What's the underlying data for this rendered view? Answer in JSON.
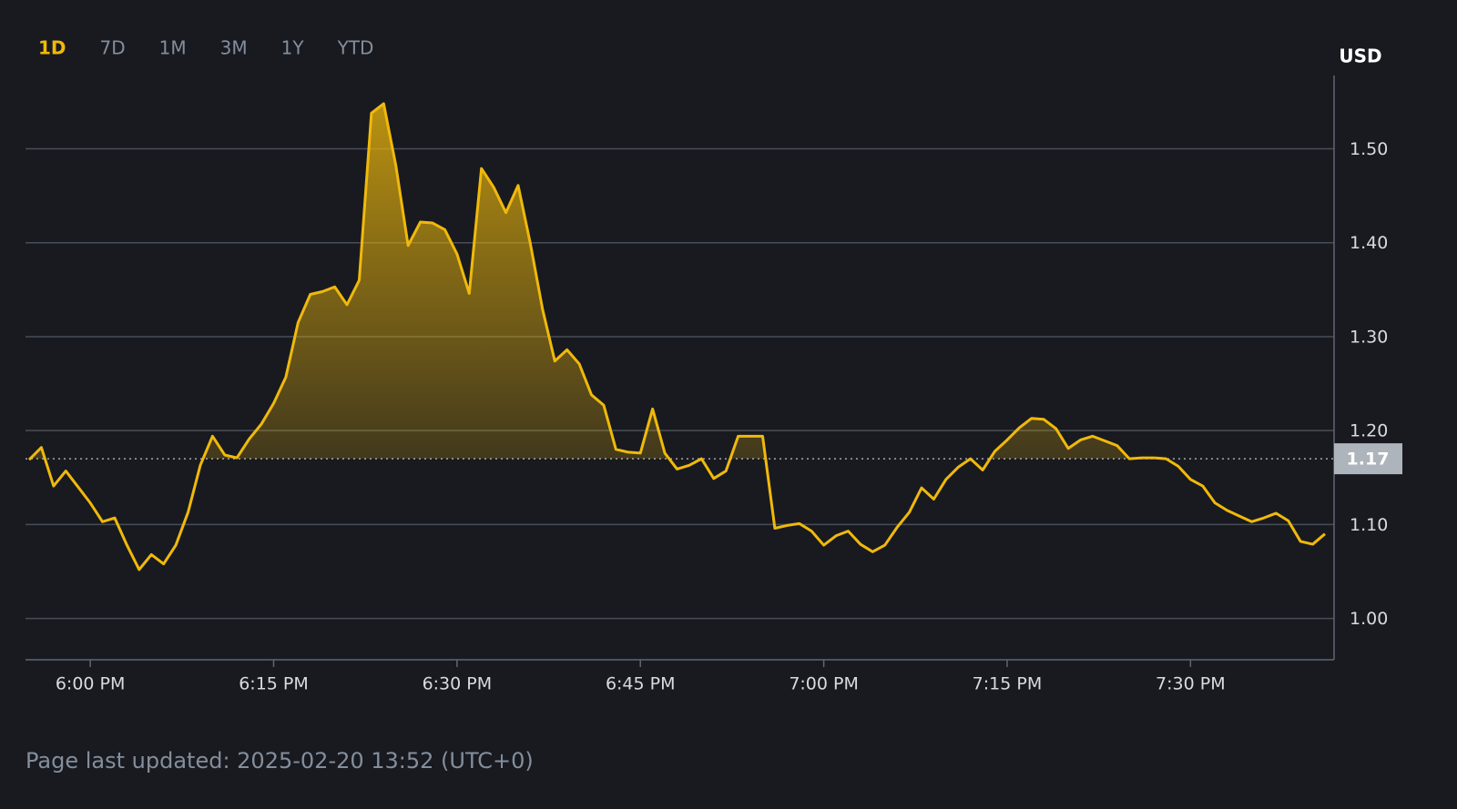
{
  "chart_data": {
    "type": "line",
    "tabs": [
      "1D",
      "7D",
      "1M",
      "3M",
      "1Y",
      "YTD"
    ],
    "active_tab": 0,
    "currency": "USD",
    "categories": [
      null,
      null,
      null,
      null,
      null,
      "6:00 PM",
      null,
      null,
      null,
      null,
      null,
      null,
      null,
      null,
      null,
      null,
      null,
      null,
      null,
      null,
      "6:15 PM",
      null,
      null,
      null,
      null,
      null,
      null,
      null,
      null,
      null,
      null,
      null,
      null,
      null,
      null,
      "6:30 PM",
      null,
      null,
      null,
      null,
      null,
      null,
      null,
      null,
      null,
      null,
      null,
      null,
      null,
      null,
      "6:45 PM",
      null,
      null,
      null,
      null,
      null,
      null,
      null,
      null,
      null,
      null,
      null,
      null,
      null,
      null,
      "7:00 PM",
      null,
      null,
      null,
      null,
      null,
      null,
      null,
      null,
      null,
      null,
      null,
      null,
      null,
      null,
      "7:15 PM",
      null,
      null,
      null,
      null,
      null,
      null,
      null,
      null,
      null,
      null,
      null,
      null,
      null,
      null,
      "7:30 PM",
      null,
      null,
      null,
      null,
      null,
      null,
      null,
      null,
      null,
      null,
      null
    ],
    "values": [
      1.169,
      1.182,
      1.141,
      1.157,
      1.14,
      1.123,
      1.103,
      1.107,
      1.078,
      1.052,
      1.068,
      1.058,
      1.078,
      1.113,
      1.163,
      1.194,
      1.174,
      1.171,
      1.191,
      1.207,
      1.229,
      1.257,
      1.315,
      1.345,
      1.348,
      1.353,
      1.334,
      1.36,
      1.538,
      1.548,
      1.482,
      1.397,
      1.422,
      1.421,
      1.414,
      1.388,
      1.346,
      1.479,
      1.459,
      1.432,
      1.461,
      1.399,
      1.329,
      1.274,
      1.286,
      1.271,
      1.238,
      1.227,
      1.18,
      1.177,
      1.176,
      1.223,
      1.176,
      1.159,
      1.163,
      1.17,
      1.149,
      1.157,
      1.194,
      1.194,
      1.194,
      1.096,
      1.099,
      1.101,
      1.093,
      1.078,
      1.088,
      1.093,
      1.079,
      1.071,
      1.078,
      1.097,
      1.113,
      1.139,
      1.127,
      1.148,
      1.161,
      1.17,
      1.158,
      1.178,
      1.19,
      1.203,
      1.213,
      1.212,
      1.202,
      1.181,
      1.19,
      1.194,
      1.189,
      1.184,
      1.17,
      1.171,
      1.171,
      1.17,
      1.162,
      1.148,
      1.141,
      1.123,
      1.115,
      1.109,
      1.103,
      1.107,
      1.112,
      1.104,
      1.082,
      1.079,
      1.09
    ],
    "color": "#f0b90b",
    "current_price": 1.17,
    "ylim": [
      0.956,
      1.578
    ],
    "yticks": [
      {
        "value": 1,
        "label": "1.00"
      },
      {
        "value": 1.1,
        "label": "1.10"
      },
      {
        "value": 1.2,
        "label": "1.20"
      },
      {
        "value": 1.3,
        "label": "1.30"
      },
      {
        "value": 1.4,
        "label": "1.40"
      },
      {
        "value": 1.5,
        "label": "1.50"
      }
    ],
    "grid": true,
    "footer": "Page last updated: 2025-02-20 13:52 (UTC+0)"
  }
}
